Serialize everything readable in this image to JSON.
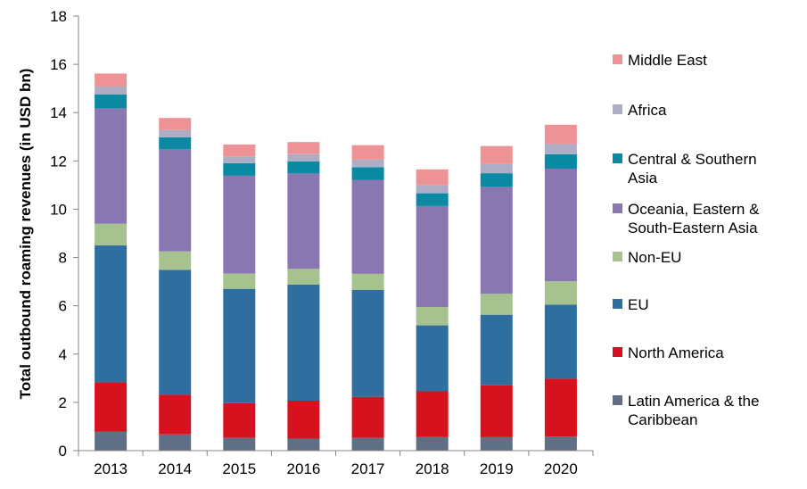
{
  "chart_data": {
    "type": "bar",
    "stacked": true,
    "title": "",
    "xlabel": "",
    "ylabel": "Total outbound roaming revenues (in USD bn)",
    "ylim": [
      0,
      18
    ],
    "yticks": [
      0,
      2,
      4,
      6,
      8,
      10,
      12,
      14,
      16,
      18
    ],
    "grid": false,
    "legend_position": "right",
    "categories": [
      "2013",
      "2014",
      "2015",
      "2016",
      "2017",
      "2018",
      "2019",
      "2020"
    ],
    "series": [
      {
        "name": "Latin America & the Caribbean",
        "color": "#5f6f84",
        "values": [
          0.78,
          0.67,
          0.53,
          0.5,
          0.53,
          0.56,
          0.56,
          0.58
        ]
      },
      {
        "name": "North America",
        "color": "#d7121f",
        "values": [
          2.05,
          1.65,
          1.43,
          1.57,
          1.7,
          1.9,
          2.15,
          2.4
        ]
      },
      {
        "name": "EU",
        "color": "#2f6f9f",
        "values": [
          5.67,
          5.17,
          4.74,
          4.81,
          4.43,
          2.73,
          2.92,
          3.07
        ]
      },
      {
        "name": "Non-EU",
        "color": "#a6c28e",
        "values": [
          0.9,
          0.76,
          0.63,
          0.65,
          0.66,
          0.76,
          0.87,
          0.97
        ]
      },
      {
        "name": "Oceania, Eastern & South-Eastern Asia",
        "color": "#8877b1",
        "values": [
          4.78,
          4.23,
          4.06,
          3.95,
          3.9,
          4.18,
          4.42,
          4.66
        ]
      },
      {
        "name": "Central & Southern Asia",
        "color": "#0a89a2",
        "values": [
          0.58,
          0.5,
          0.52,
          0.5,
          0.52,
          0.53,
          0.57,
          0.6
        ]
      },
      {
        "name": "Africa",
        "color": "#adadc6",
        "values": [
          0.32,
          0.3,
          0.27,
          0.3,
          0.31,
          0.34,
          0.38,
          0.42
        ]
      },
      {
        "name": "Middle East",
        "color": "#ee9395",
        "values": [
          0.54,
          0.5,
          0.5,
          0.5,
          0.6,
          0.65,
          0.75,
          0.8
        ]
      }
    ],
    "legend_order": [
      "Middle East",
      "Africa",
      "Central & Southern Asia",
      "Oceania, Eastern & South-Eastern Asia",
      "Non-EU",
      "EU",
      "North America",
      "Latin America & the Caribbean"
    ],
    "legend_lines": {
      "Middle East": [
        "Middle East"
      ],
      "Africa": [
        "Africa"
      ],
      "Central & Southern Asia": [
        "Central & Southern",
        "Asia"
      ],
      "Oceania, Eastern & South-Eastern Asia": [
        "Oceania, Eastern &",
        "South-Eastern Asia"
      ],
      "Non-EU": [
        "Non-EU"
      ],
      "EU": [
        "EU"
      ],
      "North America": [
        "North America"
      ],
      "Latin America & the Caribbean": [
        "Latin America & the",
        "Caribbean"
      ]
    }
  }
}
